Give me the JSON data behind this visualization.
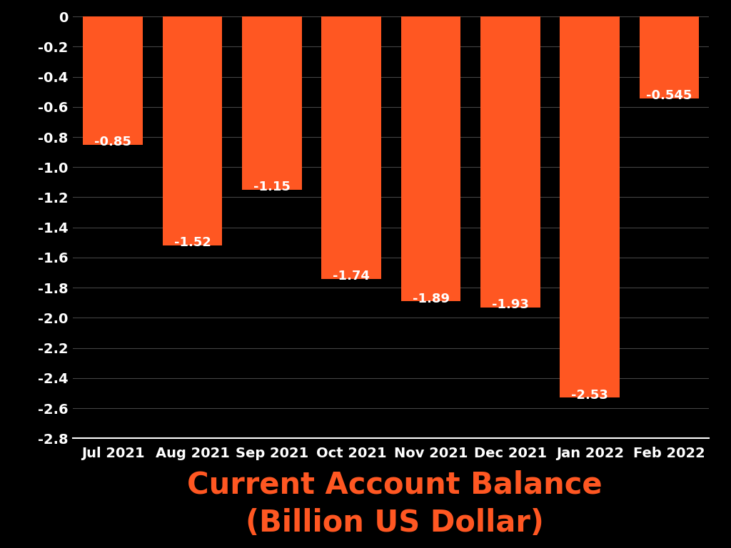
{
  "categories": [
    "Jul 2021",
    "Aug 2021",
    "Sep 2021",
    "Oct 2021",
    "Nov 2021",
    "Dec 2021",
    "Jan 2022",
    "Feb 2022"
  ],
  "values": [
    -0.85,
    -1.52,
    -1.15,
    -1.74,
    -1.89,
    -1.93,
    -2.53,
    -0.545
  ],
  "bar_color": "#FF5722",
  "background_color": "#000000",
  "text_color": "#ffffff",
  "title_line1": "Current Account Balance",
  "title_line2": "(Billion US Dollar)",
  "title_color": "#FF5722",
  "ylim": [
    -2.8,
    0
  ],
  "yticks": [
    0,
    -0.2,
    -0.4,
    -0.6,
    -0.8,
    -1.0,
    -1.2,
    -1.4,
    -1.6,
    -1.8,
    -2.0,
    -2.2,
    -2.4,
    -2.6,
    -2.8
  ],
  "grid_color": "#444444",
  "tick_fontsize": 14,
  "title_fontsize": 30,
  "value_label_fontsize": 13,
  "bar_width": 0.75
}
